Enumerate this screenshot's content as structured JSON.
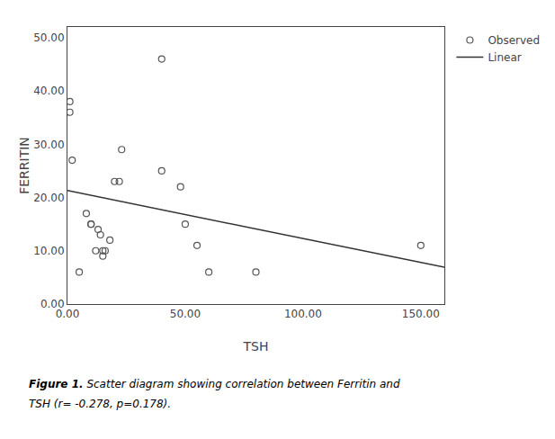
{
  "chart_data": {
    "type": "scatter",
    "xlabel": "TSH",
    "ylabel": "FERRITIN",
    "series": [
      {
        "name": "Observed",
        "type": "scatter",
        "marker": "circle-open",
        "color": "#555555",
        "x": [
          1,
          1,
          2,
          5,
          8,
          10,
          10,
          12,
          13,
          14,
          15,
          15,
          16,
          18,
          20,
          22,
          23,
          40,
          40,
          48,
          50,
          55,
          60,
          80,
          150
        ],
        "values": [
          38,
          36,
          27,
          6,
          17,
          15,
          15,
          10,
          14,
          13,
          9,
          10,
          10,
          12,
          23,
          23,
          29,
          46,
          25,
          22,
          15,
          11,
          6,
          6,
          11
        ]
      },
      {
        "name": "Linear",
        "type": "line",
        "line_style": "solid",
        "color": "#333333",
        "x": [
          0,
          160
        ],
        "values": [
          21.3,
          6.9
        ]
      }
    ],
    "xlim": [
      0,
      160
    ],
    "ylim": [
      0,
      52
    ],
    "xticks": [
      {
        "value": 0,
        "label": "0.00"
      },
      {
        "value": 50,
        "label": "50.00"
      },
      {
        "value": 100,
        "label": "100.00"
      },
      {
        "value": 150,
        "label": "150.00"
      }
    ],
    "yticks": [
      {
        "value": 0,
        "label": "0.00"
      },
      {
        "value": 10,
        "label": "10.00"
      },
      {
        "value": 20,
        "label": "20.00"
      },
      {
        "value": 30,
        "label": "30.00"
      },
      {
        "value": 40,
        "label": "40.00"
      },
      {
        "value": 50,
        "label": "50.00"
      }
    ],
    "annotations": [
      "Figure 1.",
      " Scatter diagram showing correlation between Ferritin and",
      "TSH (r= -0.278, p=0.178)."
    ],
    "grid": false,
    "legend": "right"
  }
}
